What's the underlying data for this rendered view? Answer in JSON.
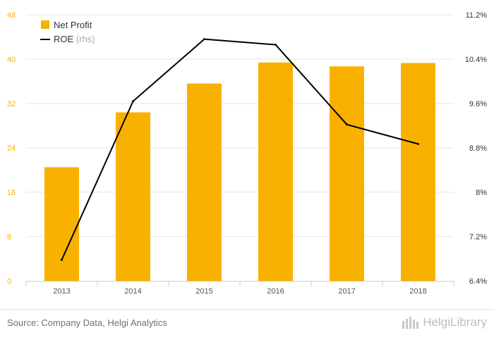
{
  "chart_data": {
    "type": "bar+line",
    "categories": [
      "2013",
      "2014",
      "2015",
      "2016",
      "2017",
      "2018"
    ],
    "series": [
      {
        "name": "Net Profit",
        "type": "bar",
        "axis": "left",
        "color": "#f9b100",
        "values": [
          20.5,
          30.4,
          35.6,
          39.4,
          38.7,
          39.3
        ]
      },
      {
        "name": "ROE",
        "type": "line",
        "axis": "right",
        "color": "#000000",
        "values": [
          6.78,
          9.64,
          10.76,
          10.66,
          9.22,
          8.87
        ]
      }
    ],
    "y_left": {
      "min": 0,
      "max": 48,
      "ticks": [
        "0",
        "8",
        "16",
        "24",
        "32",
        "40",
        "48"
      ]
    },
    "y_right": {
      "min": 6.4,
      "max": 11.2,
      "ticks": [
        "6.4%",
        "7.2%",
        "8%",
        "8.8%",
        "9.6%",
        "10.4%",
        "11.2%"
      ]
    },
    "legend": {
      "placement": "top-left",
      "bar_label": "Net Profit",
      "line_label": "ROE",
      "line_suffix": "(rhs)"
    },
    "grid": true,
    "colors": {
      "left_ticks": "#f9b100",
      "right_ticks": "#333333",
      "grid": "#e6e6e6",
      "x_ticks": "#555555"
    }
  },
  "footer": {
    "source": "Source: Company Data, Helgi Analytics",
    "brand": "HelgiLibrary"
  },
  "colors": {
    "accent": "#f9b100",
    "footer_text": "#707070",
    "brand": "#bdbdbd"
  }
}
